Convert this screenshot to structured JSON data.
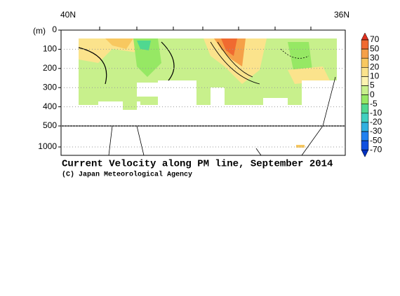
{
  "chart_data": {
    "type": "contour",
    "title": "Current Velocity along PM line, September 2014",
    "credit": "(C) Japan Meteorological Agency",
    "x_labels": [
      "40N",
      "36N"
    ],
    "y_label": "(m)",
    "ylim": [
      0,
      1200
    ],
    "yticks": [
      0,
      100,
      200,
      300,
      400,
      500,
      1000
    ],
    "ybreak": 500,
    "colorbar": {
      "levels": [
        70,
        50,
        30,
        20,
        10,
        5,
        0,
        -5,
        -10,
        -20,
        -30,
        -50,
        -70
      ],
      "colors": [
        "#e0301e",
        "#f06a30",
        "#f5a048",
        "#f8c860",
        "#fbe38c",
        "#fcf3b0",
        "#c8f08c",
        "#96e864",
        "#50d890",
        "#40d0c0",
        "#30b0e0",
        "#2080f0",
        "#1050e0",
        "#0030c0"
      ]
    }
  }
}
